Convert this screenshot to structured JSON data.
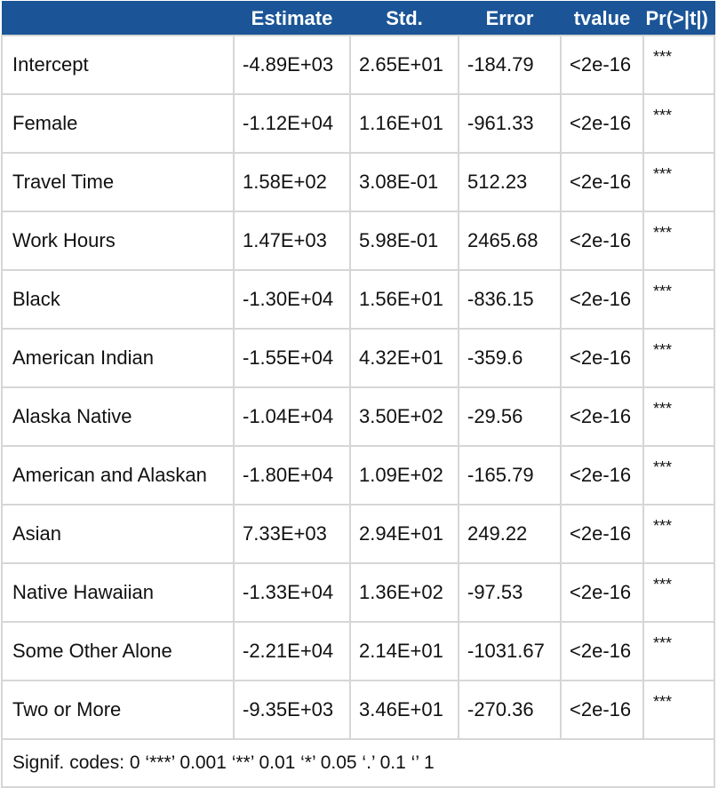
{
  "headers": [
    "",
    "Estimate",
    "Std.",
    "Error",
    "tvalue",
    "Pr(>|t|)"
  ],
  "rows": [
    [
      "Intercept",
      "-4.89E+03",
      "2.65E+01",
      "-184.79",
      "<2e-16",
      "***"
    ],
    [
      "Female",
      "-1.12E+04",
      "1.16E+01",
      "-961.33",
      "<2e-16",
      "***"
    ],
    [
      "Travel Time",
      "1.58E+02",
      "3.08E-01",
      "512.23",
      "<2e-16",
      "***"
    ],
    [
      "Work Hours",
      "1.47E+03",
      "5.98E-01",
      "2465.68",
      "<2e-16",
      "***"
    ],
    [
      "Black",
      "-1.30E+04",
      "1.56E+01",
      "-836.15",
      "<2e-16",
      "***"
    ],
    [
      "American Indian",
      "-1.55E+04",
      "4.32E+01",
      "-359.6",
      "<2e-16",
      "***"
    ],
    [
      "Alaska Native",
      "-1.04E+04",
      "3.50E+02",
      "-29.56",
      "<2e-16",
      "***"
    ],
    [
      "American and Alaskan",
      "-1.80E+04",
      "1.09E+02",
      "-165.79",
      "<2e-16",
      "***"
    ],
    [
      "Asian",
      "7.33E+03",
      "2.94E+01",
      "249.22",
      "<2e-16",
      "***"
    ],
    [
      "Native Hawaiian",
      "-1.33E+04",
      "1.36E+02",
      "-97.53",
      "<2e-16",
      "***"
    ],
    [
      "Some Other Alone",
      "-2.21E+04",
      "2.14E+01",
      "-1031.67",
      "<2e-16",
      "***"
    ],
    [
      "Two or More",
      "-9.35E+03",
      "3.46E+01",
      "-270.36",
      "<2e-16",
      "***"
    ]
  ],
  "footer": "Signif. codes: 0 ‘***’ 0.001 ‘**’ 0.01 ‘*’ 0.05 ‘.’ 0.1 ‘’ 1",
  "colors": {
    "header_bg": "#1b5597",
    "header_text": "#ffffff",
    "grid": "#d6d6d6"
  }
}
